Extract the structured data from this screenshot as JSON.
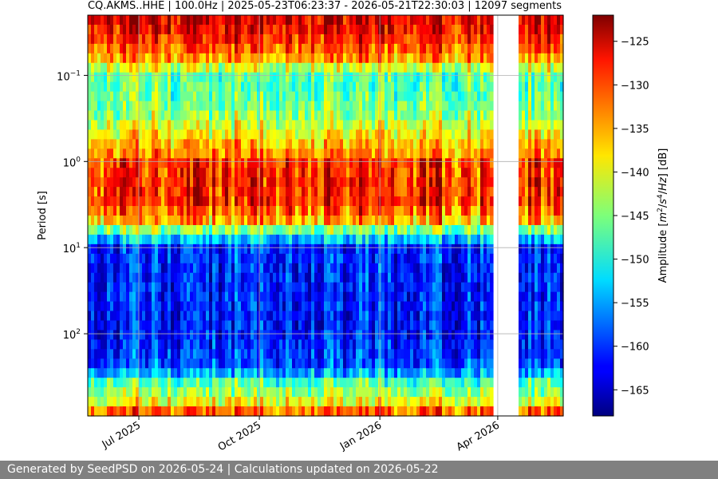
{
  "chart_data": {
    "type": "heatmap",
    "title": "CQ.AKMS..HHE | 100.0Hz | 2025-05-23T06:23:37 - 2026-05-21T22:30:03 | 12097 segments",
    "xlabel": "",
    "ylabel": "Period [s]",
    "x_range": [
      "2025-05-23",
      "2026-05-21"
    ],
    "x_ticks": [
      {
        "date": "2025-07-01",
        "label": "Jul 2025"
      },
      {
        "date": "2025-10-01",
        "label": "Oct 2025"
      },
      {
        "date": "2026-01-01",
        "label": "Jan 2026"
      },
      {
        "date": "2026-04-01",
        "label": "Apr 2026"
      }
    ],
    "y_scale": "log",
    "y_axis_inverted": true,
    "y_range": [
      0.02,
      900
    ],
    "y_ticks": [
      {
        "value": 0.1,
        "label": "10",
        "exp": "−1"
      },
      {
        "value": 1,
        "label": "10",
        "exp": "0"
      },
      {
        "value": 10,
        "label": "10",
        "exp": "1"
      },
      {
        "value": 100,
        "label": "10",
        "exp": "2"
      }
    ],
    "grid": true,
    "colormap": "jet",
    "colorbar": {
      "label_parts": [
        "Amplitude [",
        "m",
        "2",
        "/",
        "s",
        "4",
        "/",
        "Hz",
        "] [dB]"
      ],
      "range": [
        -168,
        -122
      ],
      "ticks": [
        -125,
        -130,
        -135,
        -140,
        -145,
        -150,
        -155,
        -160,
        -165
      ]
    },
    "data_gaps": [
      [
        "2026-02-19",
        "2026-02-21"
      ],
      [
        "2026-03-29",
        "2026-03-31"
      ],
      [
        "2026-04-01",
        "2026-04-16"
      ]
    ],
    "band_amplitude_profile": [
      {
        "period": 0.02,
        "db": -125
      },
      {
        "period": 0.03,
        "db": -127
      },
      {
        "period": 0.06,
        "db": -133
      },
      {
        "period": 0.1,
        "db": -146
      },
      {
        "period": 0.15,
        "db": -147
      },
      {
        "period": 0.3,
        "db": -143
      },
      {
        "period": 0.6,
        "db": -136
      },
      {
        "period": 1.0,
        "db": -132
      },
      {
        "period": 3.0,
        "db": -131
      },
      {
        "period": 5.0,
        "db": -138
      },
      {
        "period": 7.0,
        "db": -148
      },
      {
        "period": 10.0,
        "db": -160
      },
      {
        "period": 100.0,
        "db": -161
      },
      {
        "period": 250.0,
        "db": -158
      },
      {
        "period": 350.0,
        "db": -148
      },
      {
        "period": 600.0,
        "db": -140
      },
      {
        "period": 900.0,
        "db": -128
      }
    ]
  },
  "footer": {
    "text": "Generated by SeedPSD on 2026-05-24 | Calculations updated on 2026-05-22"
  }
}
